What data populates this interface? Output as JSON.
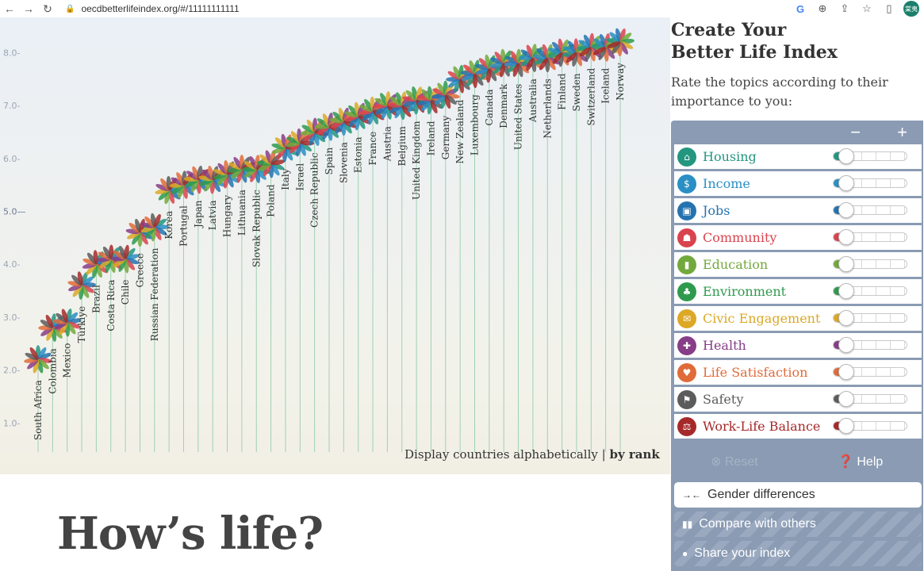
{
  "browser": {
    "url": "oecdbetterlifeindex.org/#/11111111111",
    "profile_label": "棠夷"
  },
  "chart_data": {
    "type": "scatter",
    "title": "",
    "xlabel": "",
    "ylabel": "",
    "ylim": [
      0,
      8.6
    ],
    "yticks": [
      "1.0-",
      "2.0-",
      "3.0-",
      "4.0-",
      "5.0—",
      "6.0-",
      "7.0-",
      "8.0-"
    ],
    "ytick_values": [
      1,
      2,
      3,
      4,
      5,
      6,
      7,
      8
    ],
    "categories": [
      "South Africa",
      "Colombia",
      "Mexico",
      "Türkiye",
      "Brazil",
      "Costa Rica",
      "Chile",
      "Greece",
      "Russian Federation",
      "Korea",
      "Portugal",
      "Japan",
      "Latvia",
      "Hungary",
      "Lithuania",
      "Slovak Republic",
      "Poland",
      "Italy",
      "Israel",
      "Czech Republic",
      "Spain",
      "Slovenia",
      "Estonia",
      "France",
      "Austria",
      "Belgium",
      "United Kingdom",
      "Ireland",
      "Germany",
      "New Zealand",
      "Luxembourg",
      "Canada",
      "Denmark",
      "United States",
      "Australia",
      "Netherlands",
      "Finland",
      "Sweden",
      "Switzerland",
      "Iceland",
      "Norway"
    ],
    "values": [
      2.2,
      2.8,
      2.9,
      3.6,
      4.0,
      4.1,
      4.1,
      4.6,
      4.7,
      5.4,
      5.5,
      5.6,
      5.6,
      5.7,
      5.8,
      5.8,
      5.9,
      6.2,
      6.3,
      6.5,
      6.6,
      6.7,
      6.8,
      6.9,
      7.0,
      7.0,
      7.1,
      7.1,
      7.2,
      7.5,
      7.6,
      7.7,
      7.8,
      7.8,
      7.9,
      7.9,
      8.0,
      8.0,
      8.1,
      8.1,
      8.2
    ],
    "petal_colors": [
      "#23967f",
      "#2a8fc4",
      "#2473b0",
      "#d9434e",
      "#72a93c",
      "#2f9a4d",
      "#dca826",
      "#873d87",
      "#e06b39",
      "#5c5c5c",
      "#a62a2a"
    ],
    "grid": false
  },
  "sort": {
    "prefix": "Display countries alphabetically",
    "separator": " | ",
    "active": "by rank"
  },
  "panel": {
    "title_line1": "Create Your",
    "title_line2": "Better Life Index",
    "subtitle": "Rate the topics according to their importance to you:",
    "minus": "−",
    "plus": "+",
    "topics": [
      {
        "label": "Housing",
        "color": "#23967f",
        "icon": "house-icon",
        "glyph": "⌂",
        "level": 1
      },
      {
        "label": "Income",
        "color": "#2a8fc4",
        "icon": "money-icon",
        "glyph": "$",
        "level": 1
      },
      {
        "label": "Jobs",
        "color": "#2473b0",
        "icon": "briefcase-icon",
        "glyph": "▣",
        "level": 1
      },
      {
        "label": "Community",
        "color": "#d9434e",
        "icon": "people-icon",
        "glyph": "☗",
        "level": 1
      },
      {
        "label": "Education",
        "color": "#72a93c",
        "icon": "book-icon",
        "glyph": "▮",
        "level": 1
      },
      {
        "label": "Environment",
        "color": "#2f9a4d",
        "icon": "tree-icon",
        "glyph": "♣",
        "level": 1
      },
      {
        "label": "Civic Engagement",
        "color": "#dca826",
        "icon": "envelope-icon",
        "glyph": "✉",
        "level": 1
      },
      {
        "label": "Health",
        "color": "#873d87",
        "icon": "cross-icon",
        "glyph": "✚",
        "level": 1
      },
      {
        "label": "Life Satisfaction",
        "color": "#e06b39",
        "icon": "heart-icon",
        "glyph": "♥",
        "level": 1
      },
      {
        "label": "Safety",
        "color": "#5c5c5c",
        "icon": "runner-icon",
        "glyph": "⚑",
        "level": 1
      },
      {
        "label": "Work-Life Balance",
        "color": "#a62a2a",
        "icon": "scales-icon",
        "glyph": "⚖",
        "level": 1
      }
    ],
    "reset_label": "Reset",
    "help_label": "Help",
    "gender_label": "Gender differences",
    "compare_label": "Compare with others",
    "share_label": "Share your index"
  },
  "page": {
    "heading": "How’s life?"
  }
}
